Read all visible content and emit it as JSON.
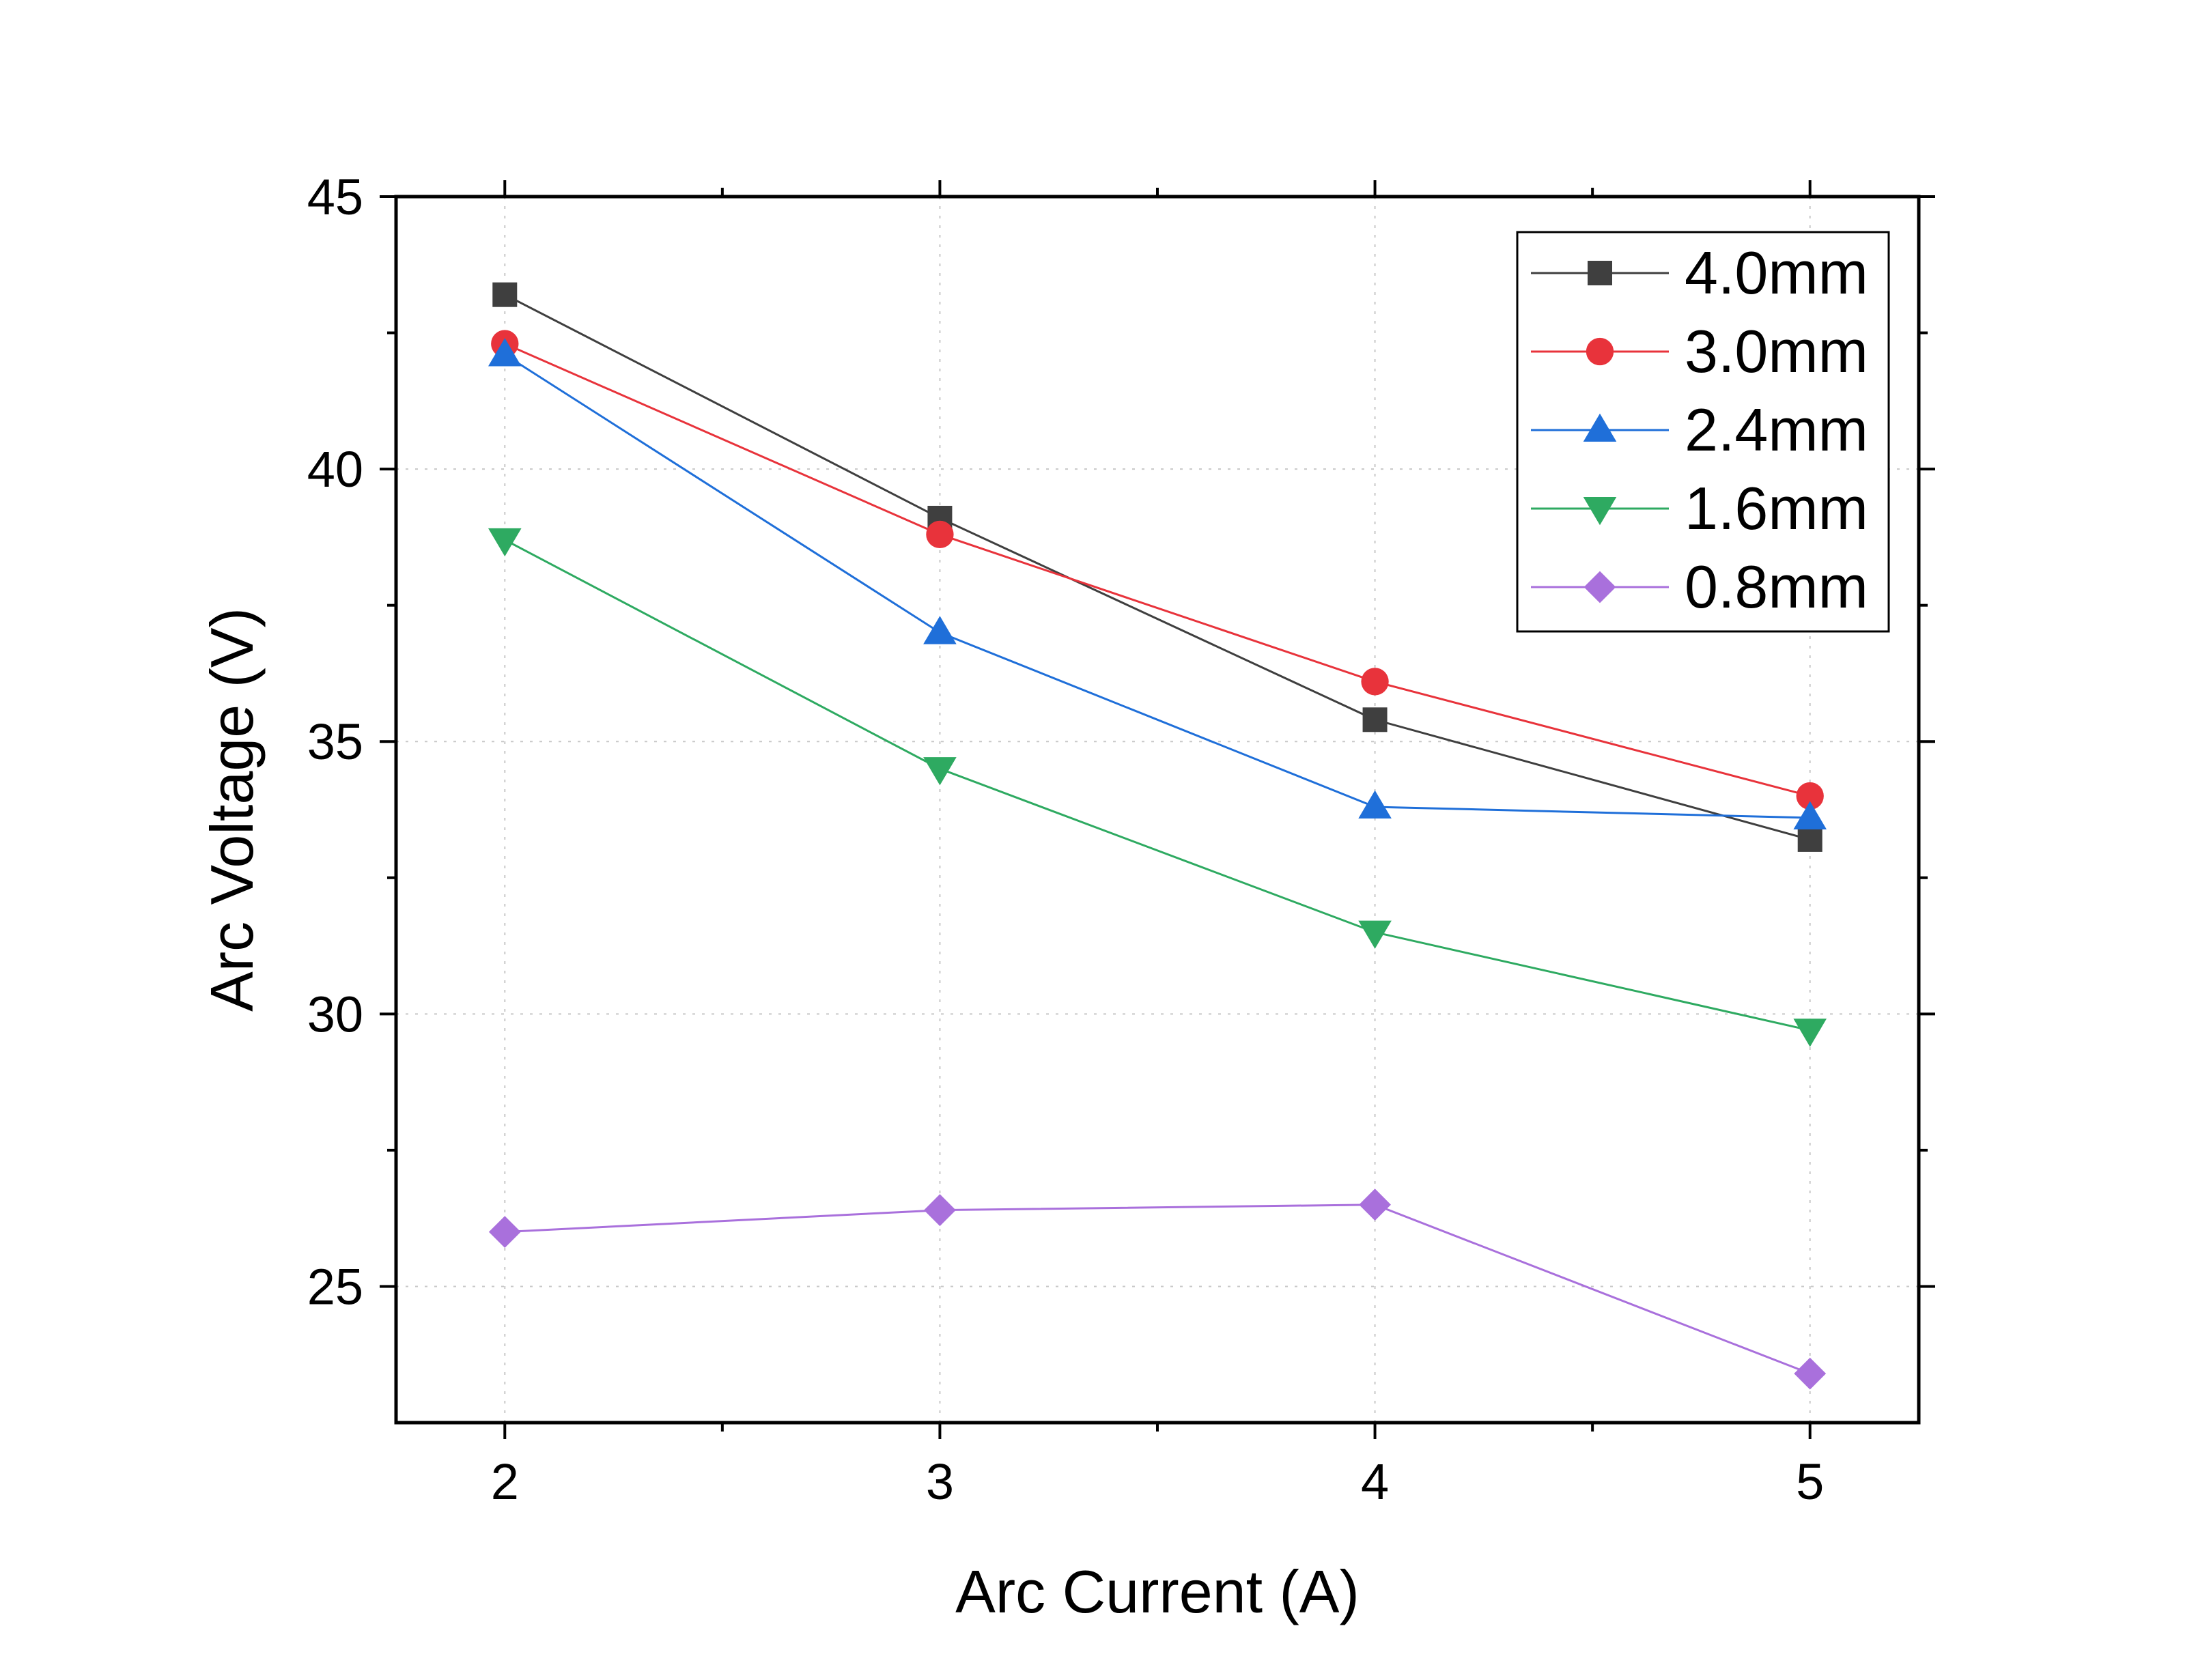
{
  "chart_data": {
    "type": "line",
    "title": "",
    "xlabel": "Arc Current (A)",
    "ylabel": "Arc Voltage (V)",
    "xlim": [
      1.75,
      5.25
    ],
    "ylim": [
      22.5,
      45
    ],
    "x_ticks": [
      2,
      3,
      4,
      5
    ],
    "x_tick_labels": [
      "2",
      "3",
      "4",
      "5"
    ],
    "y_ticks": [
      25,
      30,
      35,
      40,
      45
    ],
    "y_tick_labels": [
      "25",
      "30",
      "35",
      "40",
      "45"
    ],
    "grid": true,
    "legend_position": "top-right",
    "x": [
      2,
      3,
      4,
      5
    ],
    "series": [
      {
        "name": "4.0mm",
        "marker": "square",
        "color": "#3f3f3f",
        "line_color": "#3f3f3f",
        "values": [
          43.2,
          39.1,
          35.4,
          33.2
        ]
      },
      {
        "name": "3.0mm",
        "marker": "circle",
        "color": "#e8333b",
        "line_color": "#e8333b",
        "values": [
          42.3,
          38.8,
          36.1,
          34.0
        ]
      },
      {
        "name": "2.4mm",
        "marker": "triangle-up",
        "color": "#1f6fd9",
        "line_color": "#1f6fd9",
        "values": [
          42.1,
          37.0,
          33.8,
          33.6
        ]
      },
      {
        "name": "1.6mm",
        "marker": "triangle-down",
        "color": "#2eaa61",
        "line_color": "#2eaa61",
        "values": [
          38.7,
          34.5,
          31.5,
          29.7
        ]
      },
      {
        "name": "0.8mm",
        "marker": "diamond",
        "color": "#a970dc",
        "line_color": "#a970dc",
        "values": [
          26.0,
          26.4,
          26.5,
          23.4
        ]
      }
    ]
  }
}
